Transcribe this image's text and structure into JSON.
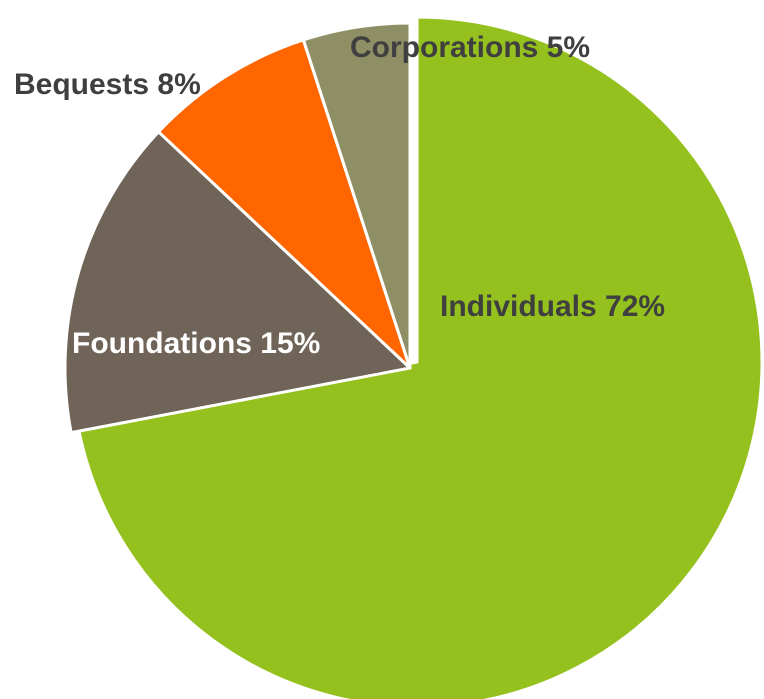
{
  "chart_data": {
    "type": "pie",
    "title": "",
    "slices": [
      {
        "label": "Individuals",
        "value": 72,
        "display": "Individuals 72%",
        "color": "#95c11f",
        "label_color": "#3f3f3f"
      },
      {
        "label": "Foundations",
        "value": 15,
        "display": "Foundations 15%",
        "color": "#6f6457",
        "label_color": "#ffffff"
      },
      {
        "label": "Bequests",
        "value": 8,
        "display": "Bequests 8%",
        "color": "#ff6600",
        "label_color": "#3f3f3f"
      },
      {
        "label": "Corporations",
        "value": 5,
        "display": "Corporations  5%",
        "color": "#8f8f66",
        "label_color": "#3f3f3f"
      }
    ],
    "start_angle": "12 o'clock",
    "direction": "clockwise",
    "exploded": "Individuals",
    "legend": "none"
  }
}
